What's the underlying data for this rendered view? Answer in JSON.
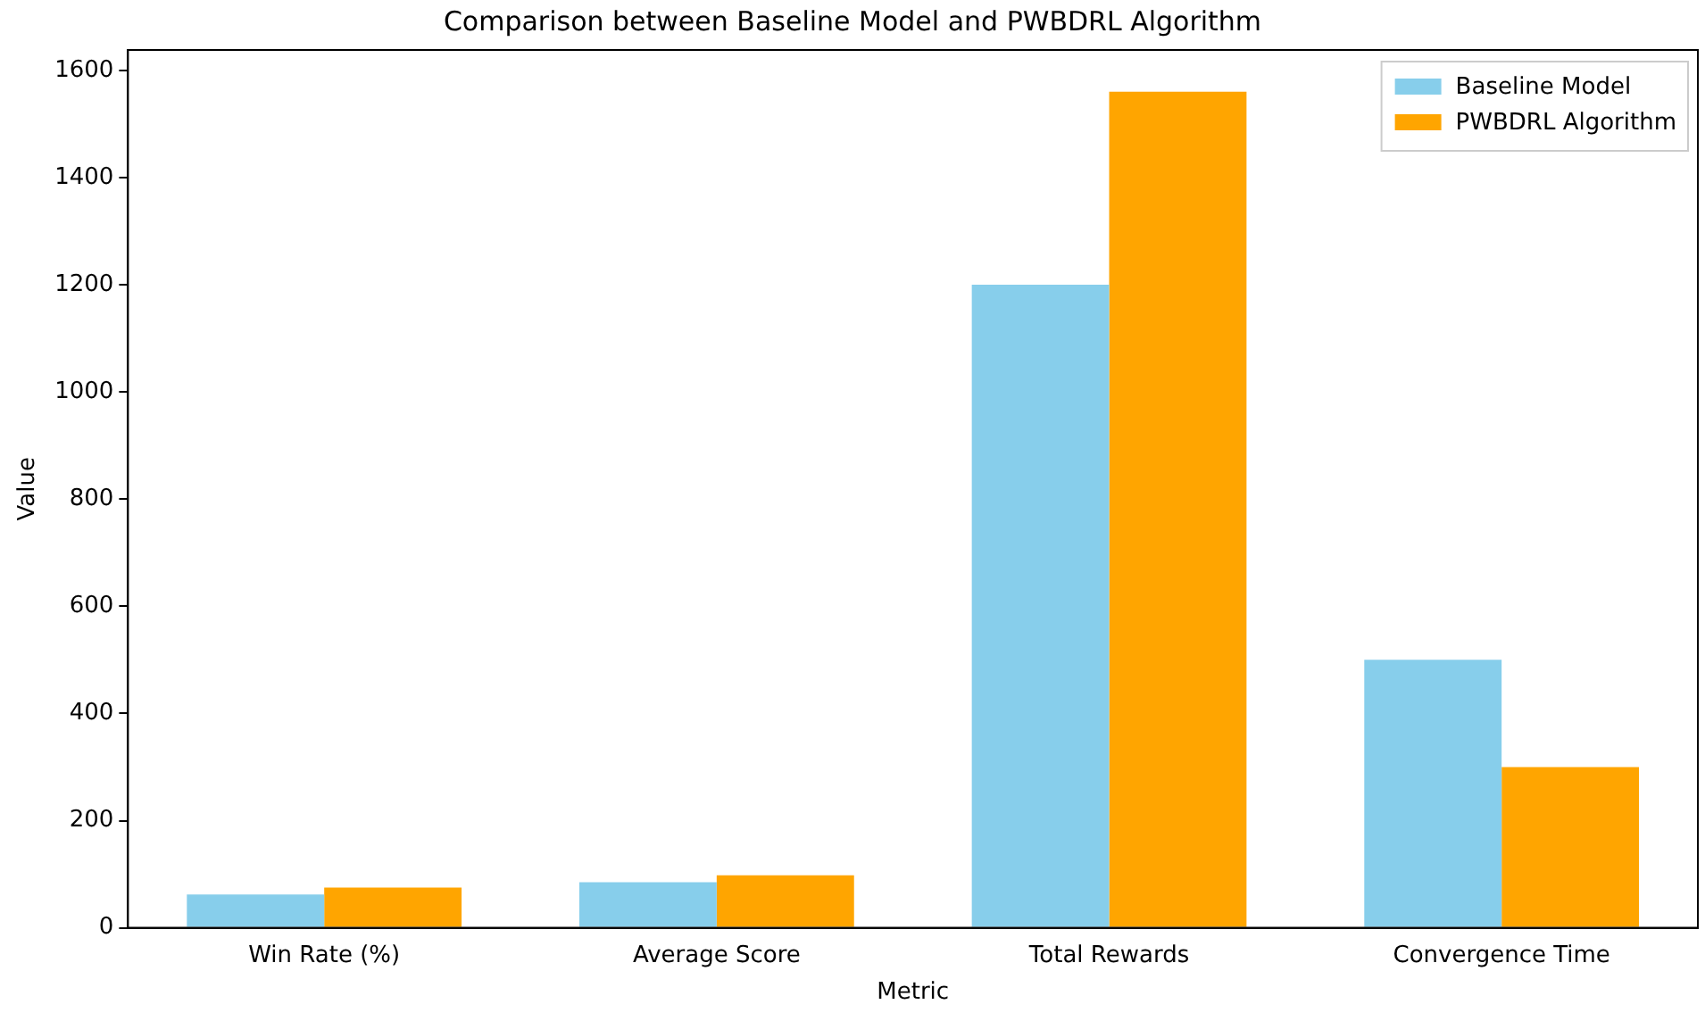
{
  "chart_data": {
    "type": "bar",
    "title": "Comparison between Baseline Model and PWBDRL Algorithm",
    "xlabel": "Metric",
    "ylabel": "Value",
    "categories": [
      "Win Rate (%)",
      "Average Score",
      "Total Rewards",
      "Convergence Time"
    ],
    "series": [
      {
        "name": "Baseline Model",
        "color": "#87ceeb",
        "values": [
          62,
          85,
          1200,
          500
        ]
      },
      {
        "name": "PWBDRL Algorithm",
        "color": "#ffa500",
        "values": [
          75,
          98,
          1560,
          300
        ]
      }
    ],
    "ylim": [
      0,
      1638
    ],
    "yticks": [
      0,
      200,
      400,
      600,
      800,
      1000,
      1200,
      1400,
      1600
    ],
    "grid": false,
    "legend": "top right"
  }
}
